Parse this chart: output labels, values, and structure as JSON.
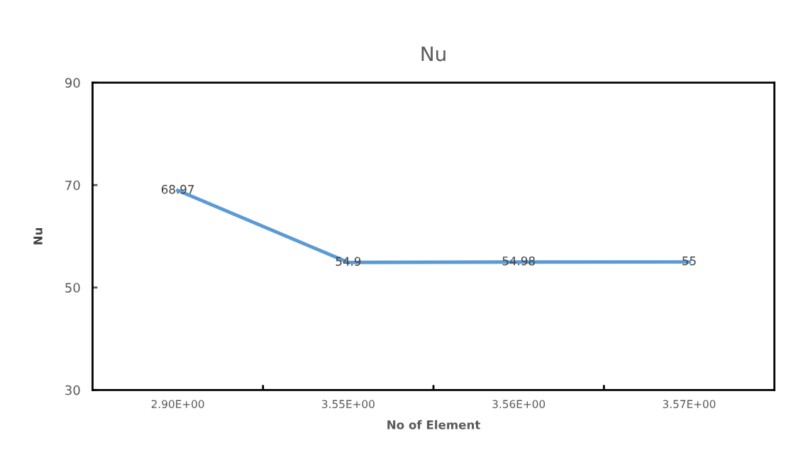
{
  "chart_data": {
    "type": "line",
    "title": "Nu",
    "xlabel": "No of Element",
    "ylabel": "Nu",
    "categories": [
      "2.90E+00",
      "3.55E+00",
      "3.56E+00",
      "3.57E+00"
    ],
    "series": [
      {
        "color": "#5b9bd5",
        "values": [
          68.97,
          54.9,
          54.98,
          55
        ]
      }
    ],
    "ylim": [
      30,
      90
    ],
    "yticks": [
      30,
      50,
      70,
      90
    ],
    "grid": false,
    "legend": false,
    "marker": "none",
    "line_style": "solid",
    "data_labels": true
  }
}
